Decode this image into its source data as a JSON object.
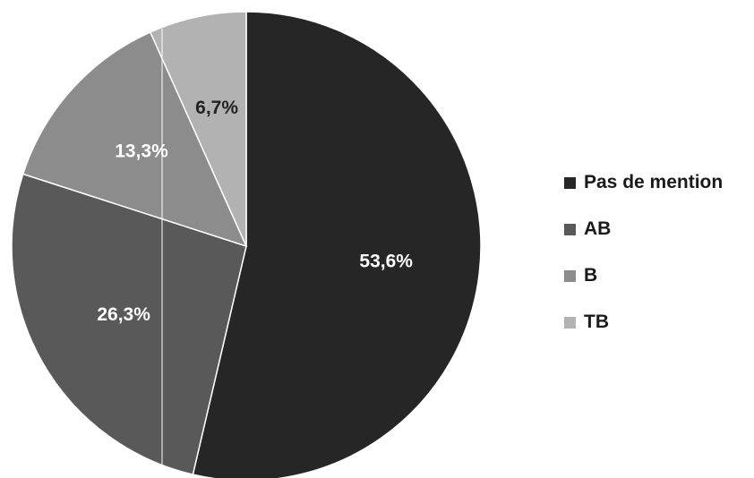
{
  "chart_data": {
    "type": "pie",
    "title": "",
    "categories": [
      "Pas de mention",
      "AB",
      "B",
      "TB"
    ],
    "values": [
      53.6,
      26.3,
      13.3,
      6.7
    ],
    "labels": [
      "53,6%",
      "26,3%",
      "13,3%",
      "6,7%"
    ],
    "colors": [
      "#262626",
      "#595959",
      "#8c8c8c",
      "#b2b2b2"
    ],
    "start_angle_deg": 0,
    "direction": "clockwise",
    "legend_position": "right"
  },
  "legend": {
    "items": [
      {
        "label": "Pas de mention",
        "color": "#262626"
      },
      {
        "label": "AB",
        "color": "#595959"
      },
      {
        "label": "B",
        "color": "#8c8c8c"
      },
      {
        "label": "TB",
        "color": "#b2b2b2"
      }
    ]
  }
}
